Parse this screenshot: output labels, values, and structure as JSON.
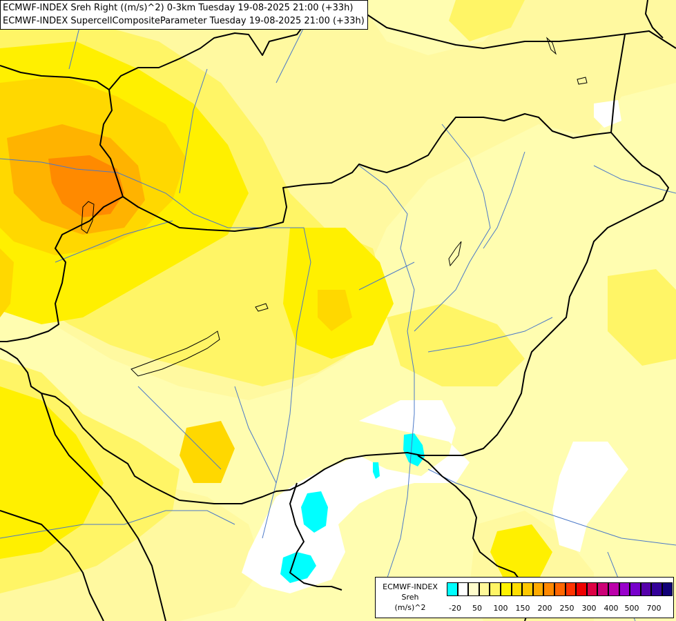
{
  "header": {
    "line1": "ECMWF-INDEX Sreh Right ((m/s)^2) 0-3km Tuesday 19-08-2025 21:00 (+33h)",
    "line2": "ECMWF-INDEX SupercellCompositeParameter Tuesday 19-08-2025 21:00 (+33h)"
  },
  "legend": {
    "title_line1": "ECMWF-INDEX",
    "title_line2": "Sreh",
    "title_line3": "(m/s)^2",
    "colors": [
      "#00ffff",
      "#ffffff",
      "#fffccc",
      "#fff899",
      "#fff566",
      "#fff200",
      "#ffdd00",
      "#ffc800",
      "#ffaa00",
      "#ff8800",
      "#ff6600",
      "#ff3300",
      "#ee0000",
      "#dd0044",
      "#cc0077",
      "#bb00aa",
      "#9900cc",
      "#7700cc",
      "#5500aa",
      "#330099",
      "#110077"
    ],
    "ticks": [
      "-20",
      "50",
      "100",
      "150",
      "200",
      "250",
      "300",
      "400",
      "500",
      "700"
    ]
  },
  "map_colors": {
    "base": "#fffdb0",
    "light": "#fff9a0",
    "mid": "#fff566",
    "yellow": "#fff000",
    "gold": "#ffd800",
    "orange": "#ffb300",
    "deep": "#ff8a00",
    "white": "#ffffff",
    "cyan": "#00ffff",
    "border": "#000000",
    "river": "#4a78c8"
  }
}
